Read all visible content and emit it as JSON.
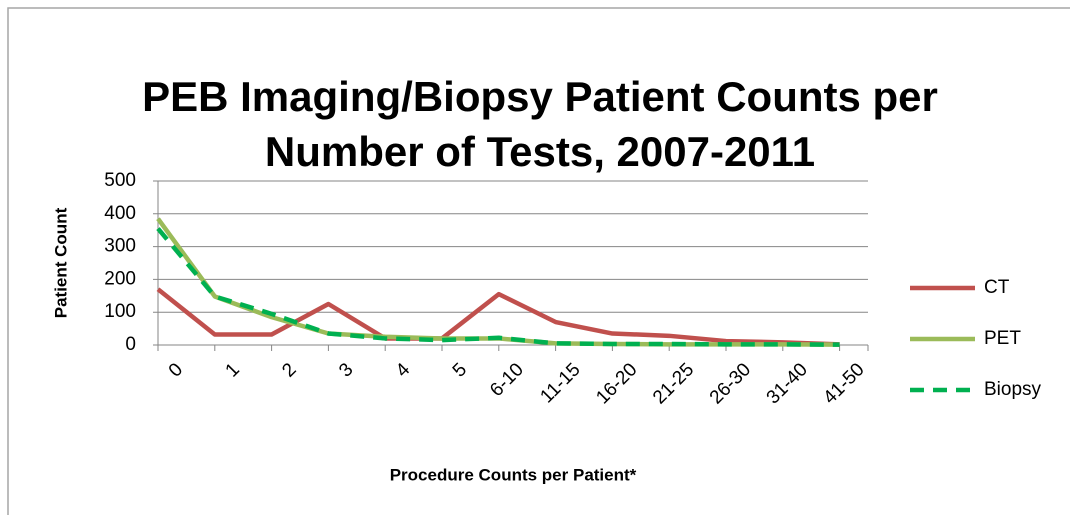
{
  "chart_data": {
    "type": "line",
    "title": [
      "PEB Imaging/Biopsy Patient Counts per",
      "Number of Tests, 2007-2011"
    ],
    "x_label": "Procedure Counts per Patient*",
    "y_label": "Patient Count",
    "categories": [
      "0",
      "1",
      "2",
      "3",
      "4",
      "5",
      "6-10",
      "11-15",
      "16-20",
      "21-25",
      "26-30",
      "31-40",
      "41-50"
    ],
    "series": [
      {
        "name": "CT",
        "color": "#c0504d",
        "dashed": false,
        "values": [
          170,
          32,
          32,
          125,
          20,
          20,
          155,
          70,
          35,
          28,
          12,
          8,
          2
        ]
      },
      {
        "name": "PET",
        "color": "#9bbb59",
        "dashed": false,
        "values": [
          385,
          148,
          85,
          35,
          25,
          20,
          20,
          5,
          3,
          2,
          2,
          2,
          1
        ]
      },
      {
        "name": "Biopsy",
        "color": "#00b050",
        "dashed": true,
        "values": [
          355,
          148,
          95,
          35,
          20,
          15,
          22,
          5,
          3,
          3,
          2,
          2,
          1
        ]
      }
    ],
    "ylim": [
      0,
      500
    ],
    "yticks": [
      0,
      100,
      200,
      300,
      400,
      500
    ],
    "grid": true,
    "legend": "right"
  }
}
